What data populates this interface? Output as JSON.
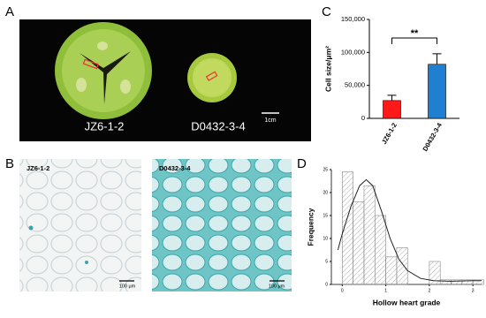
{
  "panels": {
    "a": "A",
    "b": "B",
    "c": "C",
    "d": "D"
  },
  "photo_a": {
    "labels": [
      "JZ6-1-2",
      "D0432-3-4"
    ],
    "scale": "1cm"
  },
  "photo_b": {
    "labels": [
      "JZ6-1-2",
      "D0432-3-4"
    ],
    "scale": [
      "100 μm",
      "100 μm"
    ]
  },
  "chart_data": [
    {
      "type": "bar",
      "y_label": "Cell size/μm²",
      "categories": [
        "JZ6-1-2",
        "D0432-3-4"
      ],
      "values": [
        27000,
        82000
      ],
      "errors": [
        8000,
        16000
      ],
      "colors": [
        "#ff1a1a",
        "#1f7fd0"
      ],
      "ylim": [
        0,
        150000
      ],
      "yticks": [
        0,
        {
          "value": 50000,
          "label": "50,000"
        },
        {
          "value": 100000,
          "label": "100,000"
        },
        {
          "value": 150000,
          "label": "150,000"
        }
      ],
      "annotation": "**"
    },
    {
      "type": "histogram",
      "y_label": "Frequency",
      "x_label": "Hollow heart grade",
      "bins": [
        0,
        0.25,
        0.5,
        0.75,
        1,
        1.25,
        1.5,
        1.75,
        2,
        2.25,
        2.5,
        2.75,
        3,
        3.25
      ],
      "counts": [
        24.5,
        18,
        21.5,
        15,
        6,
        8,
        0,
        0,
        5,
        1,
        1,
        1,
        1
      ],
      "color": "#888888",
      "fit": {
        "x": [
          -0.1,
          0,
          0.2,
          0.4,
          0.55,
          0.7,
          0.9,
          1.1,
          1.3,
          1.5,
          1.8,
          2.1,
          2.5,
          3,
          3.2
        ],
        "values": [
          7.5,
          11,
          17,
          21.5,
          22.8,
          21.5,
          16,
          10,
          5.5,
          3,
          1.3,
          0.8,
          0.7,
          0.8,
          0.8
        ]
      },
      "xlim": [
        -0.25,
        3.2
      ],
      "xticks": [
        0,
        1,
        2,
        3
      ],
      "ylim": [
        0,
        25
      ],
      "yticks": [
        0,
        5,
        10,
        15,
        20,
        25
      ]
    }
  ]
}
